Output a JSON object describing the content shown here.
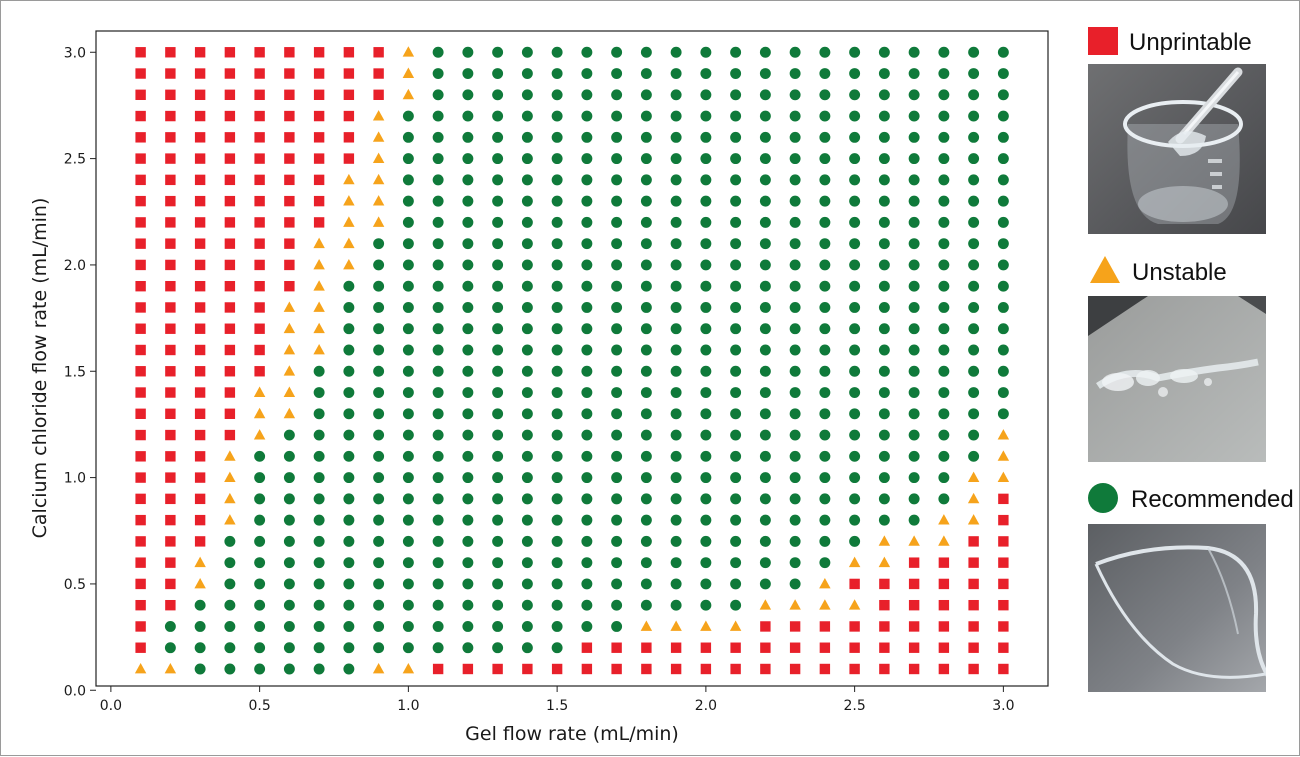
{
  "chart_data": {
    "type": "scatter",
    "xlabel": "Gel flow rate (mL/min)",
    "ylabel": "Calcium chloride flow rate (mL/min)",
    "xlim": [
      -0.05,
      3.15
    ],
    "ylim": [
      0.02,
      3.1
    ],
    "xticks": [
      "0.0",
      "0.5",
      "1.0",
      "1.5",
      "2.0",
      "2.5",
      "3.0"
    ],
    "yticks": [
      "0.0",
      "0.5",
      "1.0",
      "1.5",
      "2.0",
      "2.5",
      "3.0"
    ],
    "grid": [
      "SSRRRRRRSSUUUUUUUUUUUUUUUUUUUU",
      "URRRRRRRRRRRRRRUUUUUUUUUUUUUUU",
      "URRRRRRRRRRRRRRRRSSSSUUUUUUUUU",
      "UURRRRRRRRRRRRRRRRRRRSSSSUUUUU",
      "UUSRRRRRRRRRRRRRRRRRRRRSUUUUUU",
      "UUSRRRRRRRRRRRRRRRRRRRRRSSUUUU",
      "UUURRRRRRRRRRRRRRRRRRRRRRSSSUU",
      "UUUSRRRRRRRRRRRRRRRRRRRRRRRSSU",
      "UUUSRRRRRRRRRRRRRRRRRRRRRRRRSU",
      "UUUSRRRRRRRRRRRRRRRRRRRRRRRRSS",
      "UUUSRRRRRRRRRRRRRRRRRRRRRRRRRS",
      "UUUUSRRRRRRRRRRRRRRRRRRRRRRRRS",
      "UUUUSSRRRRRRRRRRRRRRRRRRRRRRRR",
      "UUUUSSRRRRRRRRRRRRRRRRRRRRRRRR",
      "UUUUUSRRRRRRRRRRRRRRRRRRRRRRRR",
      "UUUUUSSRRRRRRRRRRRRRRRRRRRRRRR",
      "UUUUUSSRRRRRRRRRRRRRRRRRRRRRRR",
      "UUUUUSSRRRRRRRRRRRRRRRRRRRRRRR",
      "UUUUUUSRRRRRRRRRRRRRRRRRRRRRRR",
      "UUUUUUSSRRRRRRRRRRRRRRRRRRRRRR",
      "UUUUUUSSRRRRRRRRRRRRRRRRRRRRRR",
      "UUUUUUUSSRRRRRRRRRRRRRRRRRRRRR",
      "UUUUUUUSSRRRRRRRRRRRRRRRRRRRRR",
      "UUUUUUUSSRRRRRRRRRRRRRRRRRRRRR",
      "UUUUUUUUSRRRRRRRRRRRRRRRRRRRRR",
      "UUUUUUUUSRRRRRRRRRRRRRRRRRRRRR",
      "UUUUUUUUSRRRRRRRRRRRRRRRRRRRRR",
      "UUUUUUUUUSRRRRRRRRRRRRRRRRRRRR",
      "UUUUUUUUUSRRRRRRRRRRRRRRRRRRRR",
      "UUUUUUUUUSRRRRRRRRRRRRRRRRRRRR"
    ],
    "legend_placement": "right",
    "x_values": [
      0.1,
      0.2,
      0.3,
      0.4,
      0.5,
      0.6,
      0.7,
      0.8,
      0.9,
      1.0,
      1.1,
      1.2,
      1.3,
      1.4,
      1.5,
      1.6,
      1.7,
      1.8,
      1.9,
      2.0,
      2.1,
      2.2,
      2.3,
      2.4,
      2.5,
      2.6,
      2.7,
      2.8,
      2.9,
      3.0
    ],
    "y_values": [
      0.1,
      0.2,
      0.3,
      0.4,
      0.5,
      0.6,
      0.7,
      0.8,
      0.9,
      1.0,
      1.1,
      1.2,
      1.3,
      1.4,
      1.5,
      1.6,
      1.7,
      1.8,
      1.9,
      2.0,
      2.1,
      2.2,
      2.3,
      2.4,
      2.5,
      2.6,
      2.7,
      2.8,
      2.9,
      3.0
    ],
    "grid_encoding": "grid[j][i] is the class at y=y_values[j], x=x_values[i]; U=Unprintable, S=Unstable, R=Recommended",
    "series": [
      {
        "code": "U",
        "name": "Unprintable",
        "marker": "square",
        "color": "#e8202a"
      },
      {
        "code": "S",
        "name": "Unstable",
        "marker": "triangle",
        "color": "#f6a31b"
      },
      {
        "code": "R",
        "name": "Recommended",
        "marker": "circle",
        "color": "#0f7a3a"
      }
    ]
  },
  "photos": [
    {
      "series": "Unprintable",
      "icon": "beaker-photo"
    },
    {
      "series": "Unstable",
      "icon": "gel-fragments-photo"
    },
    {
      "series": "Recommended",
      "icon": "gel-filament-photo"
    }
  ]
}
